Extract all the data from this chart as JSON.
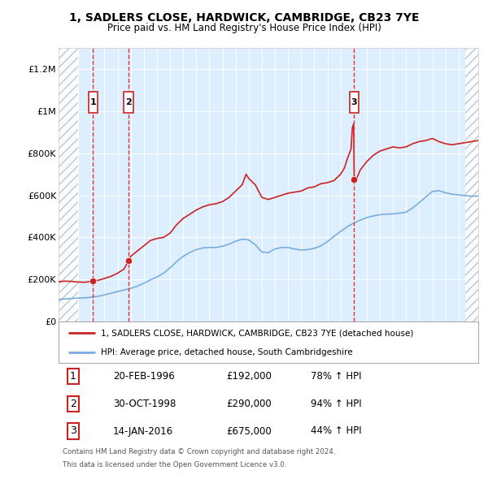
{
  "title": "1, SADLERS CLOSE, HARDWICK, CAMBRIDGE, CB23 7YE",
  "subtitle": "Price paid vs. HM Land Registry's House Price Index (HPI)",
  "legend_property": "1, SADLERS CLOSE, HARDWICK, CAMBRIDGE, CB23 7YE (detached house)",
  "legend_hpi": "HPI: Average price, detached house, South Cambridgeshire",
  "footer_line1": "Contains HM Land Registry data © Crown copyright and database right 2024.",
  "footer_line2": "This data is licensed under the Open Government Licence v3.0.",
  "transactions": [
    {
      "num": 1,
      "date": "20-FEB-1996",
      "price": "£192,000",
      "change": "78% ↑ HPI",
      "year": 1996.13,
      "price_val": 192000
    },
    {
      "num": 2,
      "date": "30-OCT-1998",
      "price": "£290,000",
      "change": "94% ↑ HPI",
      "year": 1998.83,
      "price_val": 290000
    },
    {
      "num": 3,
      "date": "14-JAN-2016",
      "price": "£675,000",
      "change": "44% ↑ HPI",
      "year": 2016.04,
      "price_val": 675000
    }
  ],
  "property_line_color": "#cc2222",
  "hpi_line_color": "#7aaddd",
  "dashed_vline_color": "#dd3333",
  "background_color": "#ddeeff",
  "ylim": [
    0,
    1300000
  ],
  "xlim": [
    1993.5,
    2025.5
  ],
  "yticks": [
    0,
    200000,
    400000,
    600000,
    800000,
    1000000,
    1200000
  ],
  "xticks": [
    1994,
    1995,
    1996,
    1997,
    1998,
    1999,
    2000,
    2001,
    2002,
    2003,
    2004,
    2005,
    2006,
    2007,
    2008,
    2009,
    2010,
    2011,
    2012,
    2013,
    2014,
    2015,
    2016,
    2017,
    2018,
    2019,
    2020,
    2021,
    2022,
    2023,
    2024,
    2025
  ],
  "property_prices": [
    [
      1993.5,
      190000
    ],
    [
      1994.0,
      192000
    ],
    [
      1994.5,
      191000
    ],
    [
      1995.0,
      188000
    ],
    [
      1995.5,
      187000
    ],
    [
      1996.13,
      192000
    ],
    [
      1996.5,
      196000
    ],
    [
      1997.0,
      205000
    ],
    [
      1997.5,
      215000
    ],
    [
      1998.0,
      230000
    ],
    [
      1998.5,
      250000
    ],
    [
      1998.83,
      290000
    ],
    [
      1999.0,
      310000
    ],
    [
      1999.5,
      335000
    ],
    [
      2000.0,
      360000
    ],
    [
      2000.5,
      385000
    ],
    [
      2001.0,
      395000
    ],
    [
      2001.5,
      400000
    ],
    [
      2002.0,
      420000
    ],
    [
      2002.5,
      460000
    ],
    [
      2003.0,
      490000
    ],
    [
      2003.5,
      510000
    ],
    [
      2004.0,
      530000
    ],
    [
      2004.5,
      545000
    ],
    [
      2005.0,
      555000
    ],
    [
      2005.5,
      560000
    ],
    [
      2006.0,
      570000
    ],
    [
      2006.5,
      590000
    ],
    [
      2007.0,
      620000
    ],
    [
      2007.5,
      650000
    ],
    [
      2007.8,
      700000
    ],
    [
      2008.0,
      680000
    ],
    [
      2008.5,
      650000
    ],
    [
      2009.0,
      590000
    ],
    [
      2009.5,
      580000
    ],
    [
      2010.0,
      590000
    ],
    [
      2010.5,
      600000
    ],
    [
      2011.0,
      610000
    ],
    [
      2011.5,
      615000
    ],
    [
      2012.0,
      620000
    ],
    [
      2012.5,
      635000
    ],
    [
      2013.0,
      640000
    ],
    [
      2013.5,
      655000
    ],
    [
      2014.0,
      660000
    ],
    [
      2014.5,
      670000
    ],
    [
      2015.0,
      700000
    ],
    [
      2015.3,
      730000
    ],
    [
      2015.5,
      770000
    ],
    [
      2015.8,
      820000
    ],
    [
      2015.9,
      920000
    ],
    [
      2016.0,
      940000
    ],
    [
      2016.04,
      675000
    ],
    [
      2016.1,
      660000
    ],
    [
      2016.3,
      690000
    ],
    [
      2016.5,
      720000
    ],
    [
      2017.0,
      760000
    ],
    [
      2017.5,
      790000
    ],
    [
      2018.0,
      810000
    ],
    [
      2018.5,
      820000
    ],
    [
      2019.0,
      830000
    ],
    [
      2019.5,
      825000
    ],
    [
      2020.0,
      830000
    ],
    [
      2020.5,
      845000
    ],
    [
      2021.0,
      855000
    ],
    [
      2021.5,
      860000
    ],
    [
      2022.0,
      870000
    ],
    [
      2022.5,
      855000
    ],
    [
      2023.0,
      845000
    ],
    [
      2023.5,
      840000
    ],
    [
      2024.0,
      845000
    ],
    [
      2024.5,
      850000
    ],
    [
      2025.0,
      855000
    ],
    [
      2025.5,
      860000
    ]
  ],
  "hpi_prices": [
    [
      1993.5,
      105000
    ],
    [
      1994.0,
      108000
    ],
    [
      1994.5,
      110000
    ],
    [
      1995.0,
      112000
    ],
    [
      1995.5,
      113000
    ],
    [
      1996.0,
      116000
    ],
    [
      1996.5,
      120000
    ],
    [
      1997.0,
      127000
    ],
    [
      1997.5,
      135000
    ],
    [
      1998.0,
      143000
    ],
    [
      1998.5,
      150000
    ],
    [
      1999.0,
      158000
    ],
    [
      1999.5,
      168000
    ],
    [
      2000.0,
      182000
    ],
    [
      2000.5,
      198000
    ],
    [
      2001.0,
      212000
    ],
    [
      2001.5,
      230000
    ],
    [
      2002.0,
      255000
    ],
    [
      2002.5,
      285000
    ],
    [
      2003.0,
      310000
    ],
    [
      2003.5,
      328000
    ],
    [
      2004.0,
      342000
    ],
    [
      2004.5,
      350000
    ],
    [
      2005.0,
      352000
    ],
    [
      2005.5,
      352000
    ],
    [
      2006.0,
      358000
    ],
    [
      2006.5,
      368000
    ],
    [
      2007.0,
      382000
    ],
    [
      2007.5,
      392000
    ],
    [
      2008.0,
      388000
    ],
    [
      2008.5,
      365000
    ],
    [
      2009.0,
      330000
    ],
    [
      2009.5,
      328000
    ],
    [
      2010.0,
      345000
    ],
    [
      2010.5,
      352000
    ],
    [
      2011.0,
      352000
    ],
    [
      2011.5,
      345000
    ],
    [
      2012.0,
      340000
    ],
    [
      2012.5,
      342000
    ],
    [
      2013.0,
      348000
    ],
    [
      2013.5,
      360000
    ],
    [
      2014.0,
      380000
    ],
    [
      2014.5,
      405000
    ],
    [
      2015.0,
      428000
    ],
    [
      2015.5,
      450000
    ],
    [
      2016.0,
      468000
    ],
    [
      2016.5,
      482000
    ],
    [
      2017.0,
      494000
    ],
    [
      2017.5,
      502000
    ],
    [
      2018.0,
      508000
    ],
    [
      2018.5,
      510000
    ],
    [
      2019.0,
      512000
    ],
    [
      2019.5,
      515000
    ],
    [
      2020.0,
      520000
    ],
    [
      2020.5,
      540000
    ],
    [
      2021.0,
      565000
    ],
    [
      2021.5,
      592000
    ],
    [
      2022.0,
      618000
    ],
    [
      2022.5,
      622000
    ],
    [
      2023.0,
      612000
    ],
    [
      2023.5,
      605000
    ],
    [
      2024.0,
      602000
    ],
    [
      2024.5,
      598000
    ],
    [
      2025.0,
      596000
    ],
    [
      2025.5,
      596000
    ]
  ],
  "hatch_left_end": 1995.0,
  "hatch_right_start": 2024.5
}
